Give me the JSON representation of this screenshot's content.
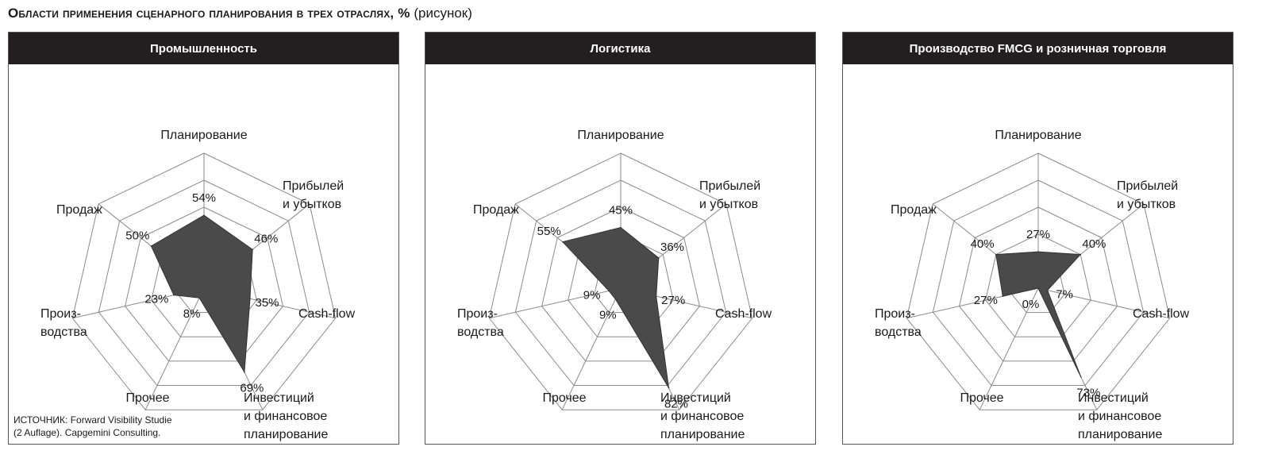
{
  "header": {
    "title": "Области применения сценарного планирования в трех отраслях, %",
    "title_note": "(рисунок)"
  },
  "source": {
    "line1": "ИСТОЧНИК: Forward Visibility Studie",
    "line2": "(2 Auflage). Capgemini Consulting."
  },
  "colors": {
    "fill": "#4a4a4a",
    "grid": "#8a8a8a",
    "header_bg": "#231f20"
  },
  "chart_data": [
    {
      "type": "radar",
      "title": "Промышленность",
      "axes": [
        "Планирование",
        "Прибылей и убытков",
        "Cash-flow",
        "Инвестиций и финансовое планирование",
        "Прочее",
        "Производства",
        "Продаж"
      ],
      "axis_label_lines": [
        [
          "Планирование"
        ],
        [
          "Прибылей",
          "и убытков"
        ],
        [
          "Cash-flow"
        ],
        [
          "Инвестиций",
          "и финансовое",
          "планирование"
        ],
        [
          "Прочее"
        ],
        [
          "Произ-",
          "водства"
        ],
        [
          "Продаж"
        ]
      ],
      "values": [
        54,
        46,
        35,
        69,
        8,
        23,
        50
      ],
      "value_labels": [
        "54%",
        "46%",
        "35%",
        "69%",
        "8%",
        "23%",
        "50%"
      ],
      "rmax": 100
    },
    {
      "type": "radar",
      "title": "Логистика",
      "axes": [
        "Планирование",
        "Прибылей и убытков",
        "Cash-flow",
        "Инвестиций и финансовое планирование",
        "Прочее",
        "Производства",
        "Продаж"
      ],
      "axis_label_lines": [
        [
          "Планирование"
        ],
        [
          "Прибылей",
          "и убытков"
        ],
        [
          "Cash-flow"
        ],
        [
          "Инвестиций",
          "и финансовое",
          "планирование"
        ],
        [
          "Прочее"
        ],
        [
          "Произ-",
          "водства"
        ],
        [
          "Продаж"
        ]
      ],
      "values": [
        45,
        36,
        27,
        82,
        9,
        9,
        55
      ],
      "value_labels": [
        "45%",
        "36%",
        "27%",
        "82%",
        "9%",
        "9%",
        "55%"
      ],
      "rmax": 100
    },
    {
      "type": "radar",
      "title": "Производство FMCG и розничная торговля",
      "axes": [
        "Планирование",
        "Прибылей и убытков",
        "Cash-flow",
        "Инвестиций и финансовое планирование",
        "Прочее",
        "Производства",
        "Продаж"
      ],
      "axis_label_lines": [
        [
          "Планирование"
        ],
        [
          "Прибылей",
          "и убытков"
        ],
        [
          "Cash-flow"
        ],
        [
          "Инвестиций",
          "и финансовое",
          "планирование"
        ],
        [
          "Прочее"
        ],
        [
          "Произ-",
          "водства"
        ],
        [
          "Продаж"
        ]
      ],
      "values": [
        27,
        40,
        7,
        73,
        0,
        27,
        40
      ],
      "value_labels": [
        "27%",
        "40%",
        "7%",
        "73%",
        "0%",
        "27%",
        "40%"
      ],
      "rmax": 100
    }
  ]
}
